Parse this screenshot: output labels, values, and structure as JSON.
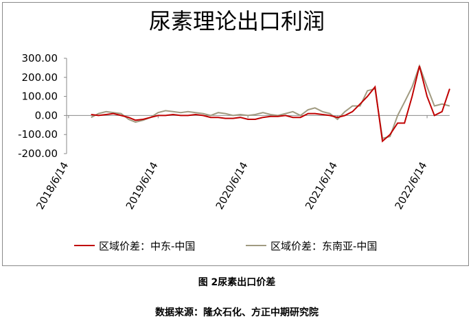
{
  "chart_data": {
    "type": "line",
    "title": "尿素理论出口利润",
    "x": [
      "2018/9/14",
      "2018/10/14",
      "2018/11/14",
      "2018/12/14",
      "2019/1/14",
      "2019/2/14",
      "2019/3/14",
      "2019/4/14",
      "2019/5/14",
      "2019/6/14",
      "2019/7/14",
      "2019/8/14",
      "2019/9/14",
      "2019/10/14",
      "2019/11/14",
      "2019/12/14",
      "2020/1/14",
      "2020/2/14",
      "2020/3/14",
      "2020/4/14",
      "2020/5/14",
      "2020/6/14",
      "2020/7/14",
      "2020/8/14",
      "2020/9/14",
      "2020/10/14",
      "2020/11/14",
      "2020/12/14",
      "2021/1/14",
      "2021/2/14",
      "2021/3/14",
      "2021/4/14",
      "2021/5/14",
      "2021/6/14",
      "2021/7/14",
      "2021/8/14",
      "2021/9/14",
      "2021/10/14",
      "2021/11/14",
      "2021/12/14",
      "2022/1/14",
      "2022/2/14",
      "2022/3/14",
      "2022/4/14",
      "2022/5/14",
      "2022/6/14",
      "2022/7/14",
      "2022/8/14",
      "2022/9/14"
    ],
    "series": [
      {
        "name": "区域价差：中东-中国",
        "color": "#c00000",
        "values": [
          5,
          0,
          5,
          10,
          0,
          -10,
          -25,
          -20,
          -10,
          0,
          0,
          5,
          0,
          0,
          5,
          0,
          -10,
          -10,
          -15,
          -15,
          -10,
          -20,
          -20,
          -10,
          -5,
          -5,
          0,
          -10,
          -10,
          10,
          10,
          5,
          0,
          -10,
          0,
          20,
          60,
          100,
          150,
          -135,
          -100,
          -40,
          -40,
          100,
          260,
          100,
          0,
          20,
          140
        ]
      },
      {
        "name": "区域价差：东南亚-中国",
        "color": "#a09a80",
        "values": [
          -10,
          10,
          20,
          15,
          10,
          -20,
          -35,
          -25,
          -10,
          15,
          25,
          20,
          15,
          20,
          15,
          10,
          0,
          15,
          10,
          0,
          5,
          0,
          5,
          15,
          5,
          0,
          10,
          20,
          0,
          30,
          40,
          20,
          10,
          -20,
          20,
          50,
          50,
          130,
          140,
          -120,
          -110,
          0,
          70,
          150,
          260,
          150,
          50,
          60,
          50
        ]
      }
    ],
    "xlim": [
      "2018/6/6",
      "2022/9/14"
    ],
    "xticks": [
      "2018/6/14",
      "2019/6/14",
      "2020/6/14",
      "2021/6/14",
      "2022/6/14"
    ],
    "ylim": [
      -200,
      300
    ],
    "yticks": [
      {
        "value": 300,
        "label": "300.00"
      },
      {
        "value": 200,
        "label": "200.00"
      },
      {
        "value": 100,
        "label": "100.00"
      },
      {
        "value": 0,
        "label": "0.00"
      },
      {
        "value": -100,
        "label": "-100.00"
      },
      {
        "value": -200,
        "label": "-200.00"
      }
    ],
    "legend": "bottom"
  },
  "caption": "图 2尿素出口价差",
  "source": "数据来源：隆众石化、方正中期研究院"
}
